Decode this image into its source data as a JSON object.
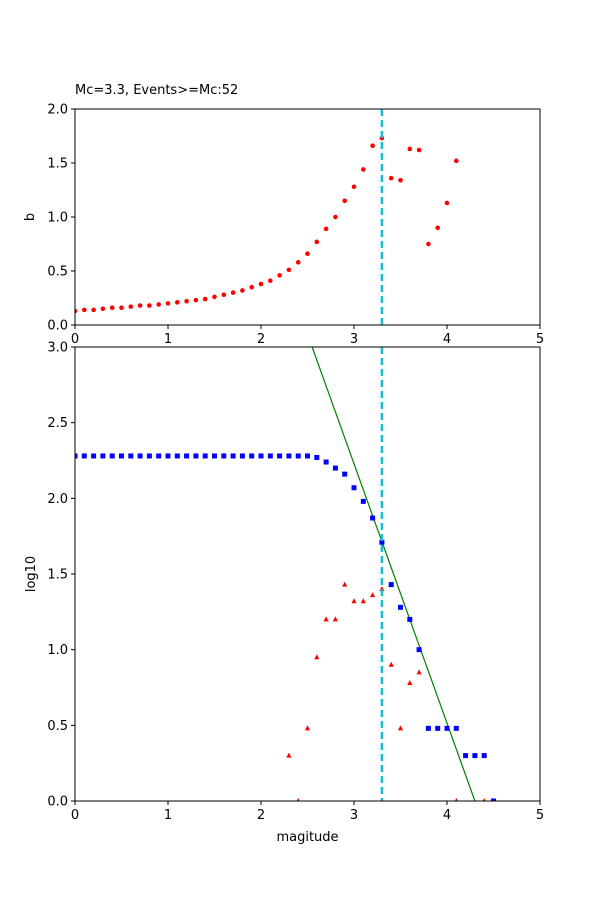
{
  "chart_data": [
    {
      "type": "scatter",
      "title": "Mc=3.3, Events>=Mc:52",
      "xlabel": "",
      "ylabel": "b",
      "xlim": [
        0,
        5
      ],
      "ylim": [
        0,
        2.0
      ],
      "x_ticks": [
        "0",
        "1",
        "2",
        "3",
        "4",
        "5"
      ],
      "y_ticks": [
        "0.0",
        "0.5",
        "1.0",
        "1.5",
        "2.0"
      ],
      "vline": {
        "x": 3.3,
        "color": "#17becf",
        "style": "dashed"
      },
      "series": [
        {
          "marker": "circle",
          "color": "#ff0000",
          "x": [
            0.0,
            0.1,
            0.2,
            0.3,
            0.4,
            0.5,
            0.6,
            0.7,
            0.8,
            0.9,
            1.0,
            1.1,
            1.2,
            1.3,
            1.4,
            1.5,
            1.6,
            1.7,
            1.8,
            1.9,
            2.0,
            2.1,
            2.2,
            2.3,
            2.4,
            2.5,
            2.6,
            2.7,
            2.8,
            2.9,
            3.0,
            3.1,
            3.2,
            3.3,
            3.4,
            3.5,
            3.6,
            3.7,
            3.8,
            3.9,
            4.0,
            4.1
          ],
          "y": [
            0.13,
            0.14,
            0.14,
            0.15,
            0.16,
            0.16,
            0.17,
            0.18,
            0.18,
            0.19,
            0.2,
            0.21,
            0.22,
            0.23,
            0.24,
            0.26,
            0.28,
            0.3,
            0.32,
            0.35,
            0.38,
            0.41,
            0.46,
            0.51,
            0.58,
            0.66,
            0.77,
            0.89,
            1.0,
            1.15,
            1.28,
            1.44,
            1.66,
            1.73,
            1.36,
            1.34,
            1.63,
            1.62,
            0.75,
            0.9,
            1.13,
            1.52
          ]
        }
      ]
    },
    {
      "type": "scatter",
      "title": "",
      "xlabel": "magitude",
      "ylabel": "log10",
      "xlim": [
        0,
        5
      ],
      "ylim": [
        0,
        3.0
      ],
      "x_ticks": [
        "0",
        "1",
        "2",
        "3",
        "4",
        "5"
      ],
      "y_ticks": [
        "0.0",
        "0.5",
        "1.0",
        "1.5",
        "2.0",
        "2.5",
        "3.0"
      ],
      "vline": {
        "x": 3.3,
        "color": "#17becf",
        "style": "dashed"
      },
      "fit_line": {
        "x": [
          2.55,
          4.3
        ],
        "y": [
          3.0,
          0.0
        ],
        "color": "#008000"
      },
      "series": [
        {
          "marker": "square",
          "color": "#0000ff",
          "x": [
            0.0,
            0.1,
            0.2,
            0.3,
            0.4,
            0.5,
            0.6,
            0.7,
            0.8,
            0.9,
            1.0,
            1.1,
            1.2,
            1.3,
            1.4,
            1.5,
            1.6,
            1.7,
            1.8,
            1.9,
            2.0,
            2.1,
            2.2,
            2.3,
            2.4,
            2.5,
            2.6,
            2.7,
            2.8,
            2.9,
            3.0,
            3.1,
            3.2,
            3.3,
            3.4,
            3.5,
            3.6,
            3.7,
            3.8,
            3.9,
            4.0,
            4.1,
            4.2,
            4.3,
            4.4,
            4.5
          ],
          "y": [
            2.28,
            2.28,
            2.28,
            2.28,
            2.28,
            2.28,
            2.28,
            2.28,
            2.28,
            2.28,
            2.28,
            2.28,
            2.28,
            2.28,
            2.28,
            2.28,
            2.28,
            2.28,
            2.28,
            2.28,
            2.28,
            2.28,
            2.28,
            2.28,
            2.28,
            2.28,
            2.27,
            2.24,
            2.2,
            2.16,
            2.07,
            1.98,
            1.87,
            1.71,
            1.43,
            1.28,
            1.2,
            1.0,
            0.48,
            0.48,
            0.48,
            0.48,
            0.3,
            0.3,
            0.3,
            0.0
          ]
        },
        {
          "marker": "triangle",
          "color": "#ff0000",
          "x": [
            2.3,
            2.4,
            2.5,
            2.6,
            2.7,
            2.8,
            2.9,
            3.0,
            3.1,
            3.2,
            3.3,
            3.4,
            3.5,
            3.6,
            3.7,
            4.1,
            4.4
          ],
          "y": [
            0.3,
            0.0,
            0.48,
            0.95,
            1.2,
            1.2,
            1.43,
            1.32,
            1.32,
            1.36,
            1.4,
            0.9,
            0.48,
            0.78,
            0.85,
            0.0,
            0.0
          ]
        }
      ]
    }
  ]
}
